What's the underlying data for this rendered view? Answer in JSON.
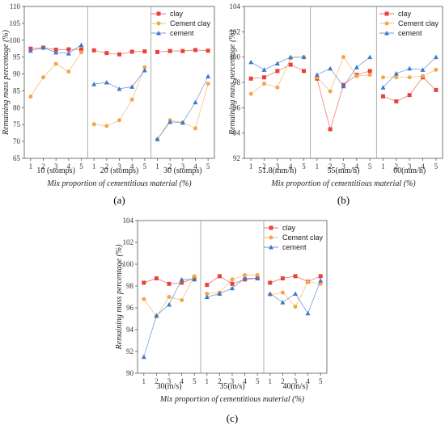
{
  "colors": {
    "clay": "#e8433a",
    "cement_clay": "#f5a54a",
    "cement": "#3b78c9"
  },
  "chart_data": [
    {
      "panel": "(a)",
      "type": "line",
      "ylabel": "Remaining mass percentage (%)",
      "xlabel": "Mix proportion of cementitious material (%)",
      "ylim": [
        65,
        110
      ],
      "yticks": [
        65,
        70,
        75,
        80,
        85,
        90,
        95,
        100,
        105,
        110
      ],
      "categories": [
        "1",
        "2",
        "3",
        "4",
        "5"
      ],
      "groups": [
        "10 (stomps)",
        "20 (stomps)",
        "30 (stomps)"
      ],
      "legend": "top-right",
      "series": [
        {
          "name": "clay",
          "values": [
            [
              97.5,
              97.8,
              97.2,
              97.3,
              97.3
            ],
            [
              97.0,
              96.2,
              95.8,
              96.6,
              96.7
            ],
            [
              96.5,
              96.8,
              96.8,
              97.1,
              96.9
            ]
          ]
        },
        {
          "name": "Cement clay",
          "values": [
            [
              83.3,
              89.0,
              93.0,
              90.7,
              96.4
            ],
            [
              75.1,
              74.6,
              76.3,
              82.4,
              92.0
            ],
            [
              70.6,
              76.3,
              75.6,
              73.9,
              87.1
            ]
          ]
        },
        {
          "name": "cement",
          "values": [
            [
              96.9,
              97.8,
              96.4,
              96.1,
              98.6
            ],
            [
              87.0,
              87.5,
              85.6,
              86.2,
              91.1
            ],
            [
              70.7,
              75.8,
              75.6,
              81.6,
              89.3
            ]
          ]
        }
      ]
    },
    {
      "panel": "(b)",
      "type": "line",
      "ylabel": "Remaining mass percentage (%)",
      "xlabel": "Mix proportion of cementitious material (%)",
      "ylim": [
        92,
        104
      ],
      "yticks": [
        92,
        94,
        96,
        98,
        100,
        102,
        104
      ],
      "categories": [
        "1",
        "2",
        "3",
        "4",
        "5"
      ],
      "groups": [
        "51.8(mm/h)",
        "55(mm/h)",
        "60(mm/h)"
      ],
      "legend": "top-right",
      "series": [
        {
          "name": "clay",
          "values": [
            [
              98.3,
              98.4,
              98.9,
              99.4,
              98.9
            ],
            [
              98.3,
              94.3,
              97.8,
              98.6,
              98.9
            ],
            [
              96.9,
              96.5,
              97.0,
              98.4,
              97.4
            ]
          ]
        },
        {
          "name": "Cement clay",
          "values": [
            [
              97.1,
              97.9,
              97.6,
              99.9,
              100.0
            ],
            [
              98.4,
              97.3,
              100.0,
              98.5,
              98.6
            ],
            [
              98.4,
              98.4,
              98.4,
              98.5,
              99.0
            ]
          ]
        },
        {
          "name": "cement",
          "values": [
            [
              99.6,
              99.0,
              99.5,
              100.0,
              100.0
            ],
            [
              98.6,
              99.1,
              97.7,
              99.2,
              100.0
            ],
            [
              97.6,
              98.7,
              99.1,
              99.0,
              100.0
            ]
          ]
        }
      ]
    },
    {
      "panel": "(c)",
      "type": "line",
      "ylabel": "Remaining mass percentage (%)",
      "xlabel": "Mix proportion of cementitious material (%)",
      "ylim": [
        90,
        104
      ],
      "yticks": [
        90,
        92,
        94,
        96,
        98,
        100,
        102,
        104
      ],
      "categories": [
        "1",
        "2",
        "3",
        "4",
        "5"
      ],
      "groups": [
        "30(m/s)",
        "35(m/s)",
        "40(m/s)"
      ],
      "legend": "top-right",
      "series": [
        {
          "name": "clay",
          "values": [
            [
              98.3,
              98.7,
              98.2,
              98.3,
              98.7
            ],
            [
              98.1,
              98.9,
              98.2,
              98.6,
              98.7
            ],
            [
              98.3,
              98.7,
              98.9,
              98.4,
              98.9
            ]
          ]
        },
        {
          "name": "Cement clay",
          "values": [
            [
              96.8,
              95.2,
              97.0,
              96.7,
              98.9
            ],
            [
              97.3,
              97.4,
              98.6,
              99.0,
              99.0
            ],
            [
              97.2,
              97.4,
              96.1,
              98.4,
              98.2
            ]
          ]
        },
        {
          "name": "cement",
          "values": [
            [
              91.5,
              95.3,
              96.3,
              98.6,
              98.6
            ],
            [
              97.0,
              97.3,
              97.8,
              98.7,
              98.7
            ],
            [
              97.3,
              96.5,
              97.3,
              95.5,
              98.5
            ]
          ]
        }
      ]
    }
  ]
}
